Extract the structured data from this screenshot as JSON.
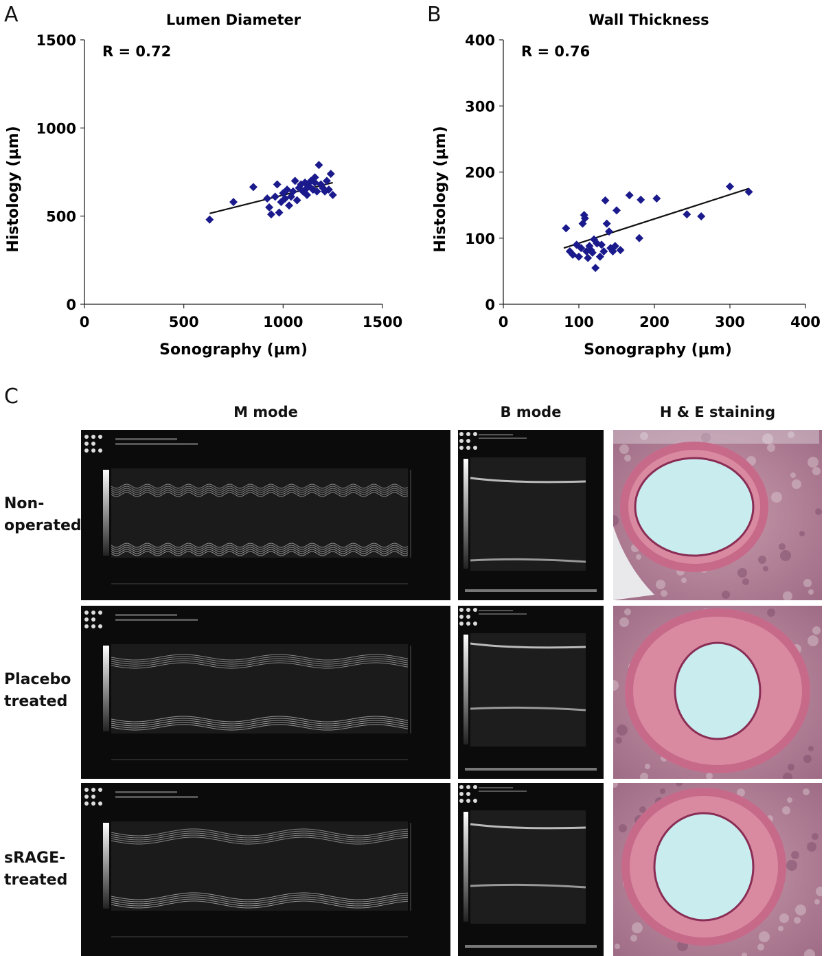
{
  "panels": {
    "a_label": "A",
    "b_label": "B",
    "c_label": "C"
  },
  "chart_data": [
    {
      "type": "scatter",
      "title": "Lumen Diameter",
      "xlabel": "Sonography (µm)",
      "ylabel": "Histology (µm)",
      "annotation": "R = 0.72",
      "xlim": [
        0,
        1500
      ],
      "ylim": [
        0,
        1500
      ],
      "xticks": [
        0,
        500,
        1000,
        1500
      ],
      "yticks": [
        0,
        500,
        1000,
        1500
      ],
      "grid": false,
      "marker_color": "#1a1a8c",
      "trendline": {
        "x": [
          630,
          1250
        ],
        "y": [
          515,
          690
        ]
      },
      "points": [
        [
          630,
          480
        ],
        [
          750,
          580
        ],
        [
          850,
          665
        ],
        [
          920,
          600
        ],
        [
          930,
          550
        ],
        [
          940,
          510
        ],
        [
          960,
          610
        ],
        [
          970,
          680
        ],
        [
          980,
          520
        ],
        [
          990,
          580
        ],
        [
          1000,
          630
        ],
        [
          1010,
          600
        ],
        [
          1020,
          650
        ],
        [
          1030,
          560
        ],
        [
          1040,
          610
        ],
        [
          1050,
          640
        ],
        [
          1060,
          700
        ],
        [
          1070,
          590
        ],
        [
          1080,
          660
        ],
        [
          1090,
          680
        ],
        [
          1100,
          640
        ],
        [
          1110,
          690
        ],
        [
          1120,
          620
        ],
        [
          1130,
          670
        ],
        [
          1140,
          700
        ],
        [
          1150,
          650
        ],
        [
          1160,
          720
        ],
        [
          1170,
          640
        ],
        [
          1180,
          790
        ],
        [
          1190,
          680
        ],
        [
          1200,
          660
        ],
        [
          1210,
          640
        ],
        [
          1220,
          700
        ],
        [
          1230,
          650
        ],
        [
          1240,
          740
        ],
        [
          1250,
          620
        ],
        [
          1120,
          660
        ],
        [
          1160,
          690
        ]
      ]
    },
    {
      "type": "scatter",
      "title": "Wall Thickness",
      "xlabel": "Sonography (µm)",
      "ylabel": "Histology (µm)",
      "annotation": "R = 0.76",
      "xlim": [
        0,
        400
      ],
      "ylim": [
        0,
        400
      ],
      "xticks": [
        0,
        100,
        200,
        300,
        400
      ],
      "yticks": [
        0,
        100,
        200,
        300,
        400
      ],
      "grid": false,
      "marker_color": "#1a1a8c",
      "trendline": {
        "x": [
          80,
          325
        ],
        "y": [
          85,
          175
        ]
      },
      "points": [
        [
          83,
          115
        ],
        [
          88,
          80
        ],
        [
          92,
          75
        ],
        [
          97,
          90
        ],
        [
          100,
          72
        ],
        [
          103,
          85
        ],
        [
          105,
          122
        ],
        [
          107,
          135
        ],
        [
          108,
          130
        ],
        [
          110,
          80
        ],
        [
          112,
          70
        ],
        [
          114,
          88
        ],
        [
          116,
          82
        ],
        [
          118,
          78
        ],
        [
          120,
          98
        ],
        [
          122,
          55
        ],
        [
          124,
          92
        ],
        [
          128,
          72
        ],
        [
          130,
          90
        ],
        [
          133,
          80
        ],
        [
          135,
          157
        ],
        [
          137,
          122
        ],
        [
          140,
          110
        ],
        [
          142,
          85
        ],
        [
          145,
          80
        ],
        [
          148,
          88
        ],
        [
          150,
          142
        ],
        [
          155,
          82
        ],
        [
          167,
          165
        ],
        [
          180,
          100
        ],
        [
          182,
          158
        ],
        [
          203,
          160
        ],
        [
          243,
          136
        ],
        [
          262,
          133
        ],
        [
          300,
          178
        ],
        [
          325,
          170
        ]
      ]
    }
  ],
  "figure_c": {
    "col_heads": [
      "M mode",
      "B mode",
      "H & E staining"
    ],
    "rows": [
      {
        "label": "Non-\noperated"
      },
      {
        "label": "Placebo\ntreated"
      },
      {
        "label": "sRAGE-\ntreated"
      }
    ]
  }
}
